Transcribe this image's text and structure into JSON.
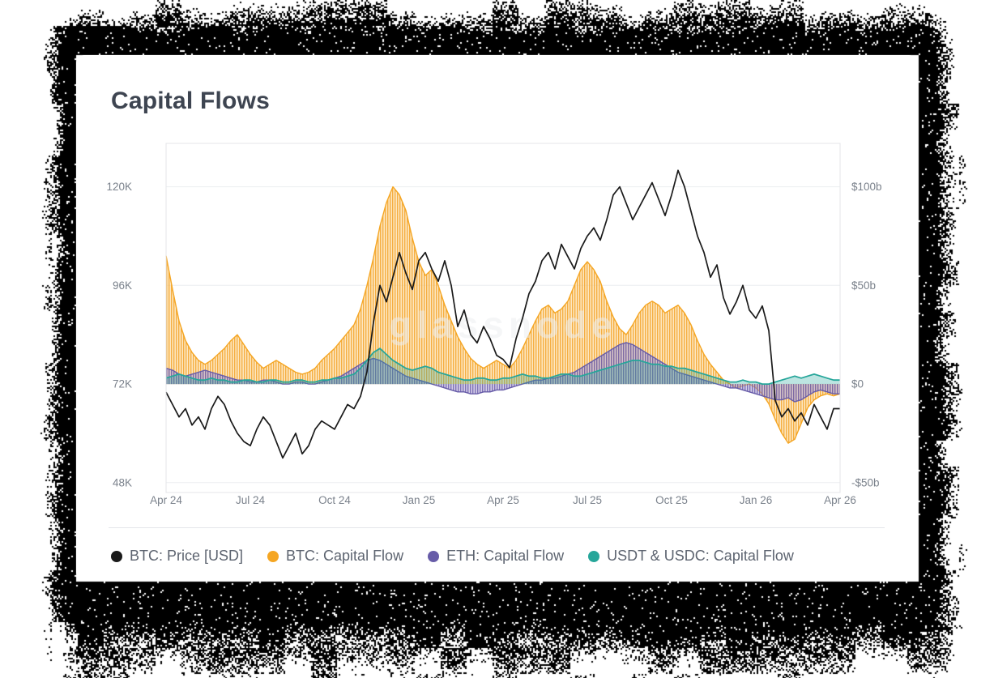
{
  "card": {
    "title": "Capital Flows"
  },
  "chart_data": {
    "type": "line",
    "title": "Capital Flows",
    "watermark": "glassnode",
    "points": 105,
    "x_tick_labels": [
      "Apr 24",
      "Jul 24",
      "Oct 24",
      "Jan 25",
      "Apr 25",
      "Jul 25",
      "Oct 25",
      "Jan 26",
      "Apr 26"
    ],
    "x_tick_indices": [
      0,
      13,
      26,
      39,
      52,
      65,
      78,
      91,
      104
    ],
    "left_axis": {
      "title": "BTC Price (USD, thousands)",
      "ticks": [
        "48K",
        "72K",
        "96K",
        "120K"
      ],
      "tick_values": [
        48,
        72,
        96,
        120
      ]
    },
    "right_axis": {
      "title": "Capital Flow (USD billions)",
      "ticks": [
        "-$50b",
        "$0",
        "$50b",
        "$100b"
      ],
      "tick_values": [
        -50,
        0,
        50,
        100
      ],
      "min": -55,
      "max": 122
    },
    "scale": {
      "price_zero": 72,
      "price_per_billion": 0.48
    },
    "grid": true,
    "legend_position": "bottom",
    "series": [
      {
        "key": "btc-price",
        "name": "BTC: Price [USD]",
        "type": "line",
        "axis": "left",
        "unit": "K USD",
        "color": "#1a1a1a",
        "values": [
          70,
          67,
          64,
          66,
          62,
          64,
          61,
          66,
          69,
          67,
          63,
          60,
          58,
          57,
          61,
          64,
          62,
          58,
          54,
          57,
          60,
          55,
          57,
          61,
          63,
          62,
          61,
          64,
          67,
          66,
          69,
          75,
          87,
          96,
          92,
          98,
          104,
          99,
          95,
          102,
          104,
          100,
          97,
          102,
          96,
          86,
          90,
          84,
          82,
          86,
          83,
          79,
          78,
          76,
          83,
          88,
          94,
          97,
          102,
          104,
          100,
          106,
          103,
          100,
          105,
          108,
          110,
          107,
          112,
          118,
          120,
          116,
          112,
          115,
          118,
          121,
          117,
          113,
          118,
          124,
          120,
          114,
          108,
          104,
          98,
          101,
          93,
          89,
          92,
          96,
          90,
          88,
          91,
          85,
          68,
          64,
          66,
          63,
          65,
          62,
          67,
          64,
          61,
          66,
          66
        ]
      },
      {
        "key": "btc-capital-flow",
        "name": "BTC: Capital Flow",
        "type": "area",
        "axis": "right",
        "unit": "$b",
        "color": "#f5a623",
        "values": [
          65,
          48,
          32,
          22,
          16,
          12,
          10,
          12,
          15,
          18,
          22,
          25,
          20,
          15,
          11,
          8,
          10,
          12,
          10,
          8,
          6,
          5,
          6,
          8,
          12,
          15,
          18,
          22,
          26,
          30,
          38,
          50,
          64,
          80,
          92,
          100,
          96,
          88,
          74,
          62,
          55,
          58,
          50,
          40,
          32,
          24,
          18,
          13,
          10,
          8,
          10,
          12,
          10,
          8,
          12,
          18,
          25,
          32,
          38,
          40,
          36,
          38,
          42,
          50,
          58,
          62,
          58,
          52,
          42,
          34,
          28,
          25,
          30,
          36,
          40,
          42,
          40,
          36,
          38,
          40,
          36,
          30,
          22,
          15,
          10,
          6,
          2,
          0,
          -2,
          -1,
          0,
          -2,
          -5,
          -10,
          -18,
          -25,
          -30,
          -28,
          -20,
          -12,
          -8,
          -6,
          -5,
          -6,
          -5
        ]
      },
      {
        "key": "eth-capital-flow",
        "name": "ETH: Capital Flow",
        "type": "area",
        "axis": "right",
        "unit": "$b",
        "color": "#675ca8",
        "values": [
          8,
          7,
          5,
          4,
          5,
          6,
          7,
          6,
          5,
          4,
          3,
          2,
          2,
          1,
          1,
          2,
          2,
          1,
          0,
          0,
          1,
          1,
          0,
          0,
          1,
          2,
          3,
          4,
          6,
          8,
          10,
          12,
          13,
          12,
          10,
          8,
          6,
          4,
          3,
          2,
          1,
          0,
          -1,
          -2,
          -3,
          -4,
          -4,
          -5,
          -5,
          -4,
          -4,
          -3,
          -3,
          -2,
          -1,
          0,
          1,
          2,
          2,
          3,
          3,
          4,
          5,
          6,
          8,
          10,
          12,
          14,
          16,
          18,
          20,
          21,
          20,
          18,
          16,
          14,
          12,
          10,
          8,
          6,
          5,
          4,
          3,
          2,
          1,
          0,
          -1,
          -2,
          -2,
          -3,
          -4,
          -5,
          -6,
          -7,
          -8,
          -8,
          -7,
          -9,
          -8,
          -6,
          -4,
          -3,
          -4,
          -5,
          -5
        ]
      },
      {
        "key": "usdt-usdc-capital-flow",
        "name": "USDT & USDC: Capital Flow",
        "type": "area",
        "axis": "right",
        "unit": "$b",
        "color": "#26a69a",
        "values": [
          3,
          4,
          5,
          4,
          3,
          2,
          2,
          3,
          2,
          2,
          1,
          1,
          2,
          2,
          1,
          1,
          2,
          2,
          1,
          1,
          2,
          2,
          1,
          1,
          2,
          2,
          3,
          3,
          4,
          5,
          8,
          12,
          16,
          18,
          15,
          12,
          10,
          8,
          7,
          8,
          9,
          8,
          6,
          5,
          4,
          3,
          2,
          2,
          3,
          3,
          2,
          2,
          3,
          3,
          4,
          5,
          4,
          4,
          3,
          3,
          4,
          5,
          5,
          4,
          4,
          5,
          6,
          7,
          8,
          9,
          10,
          11,
          12,
          12,
          11,
          10,
          10,
          9,
          9,
          8,
          8,
          7,
          6,
          5,
          4,
          3,
          2,
          1,
          1,
          2,
          1,
          1,
          0,
          0,
          1,
          2,
          3,
          4,
          3,
          4,
          5,
          4,
          3,
          2,
          2
        ]
      }
    ]
  }
}
